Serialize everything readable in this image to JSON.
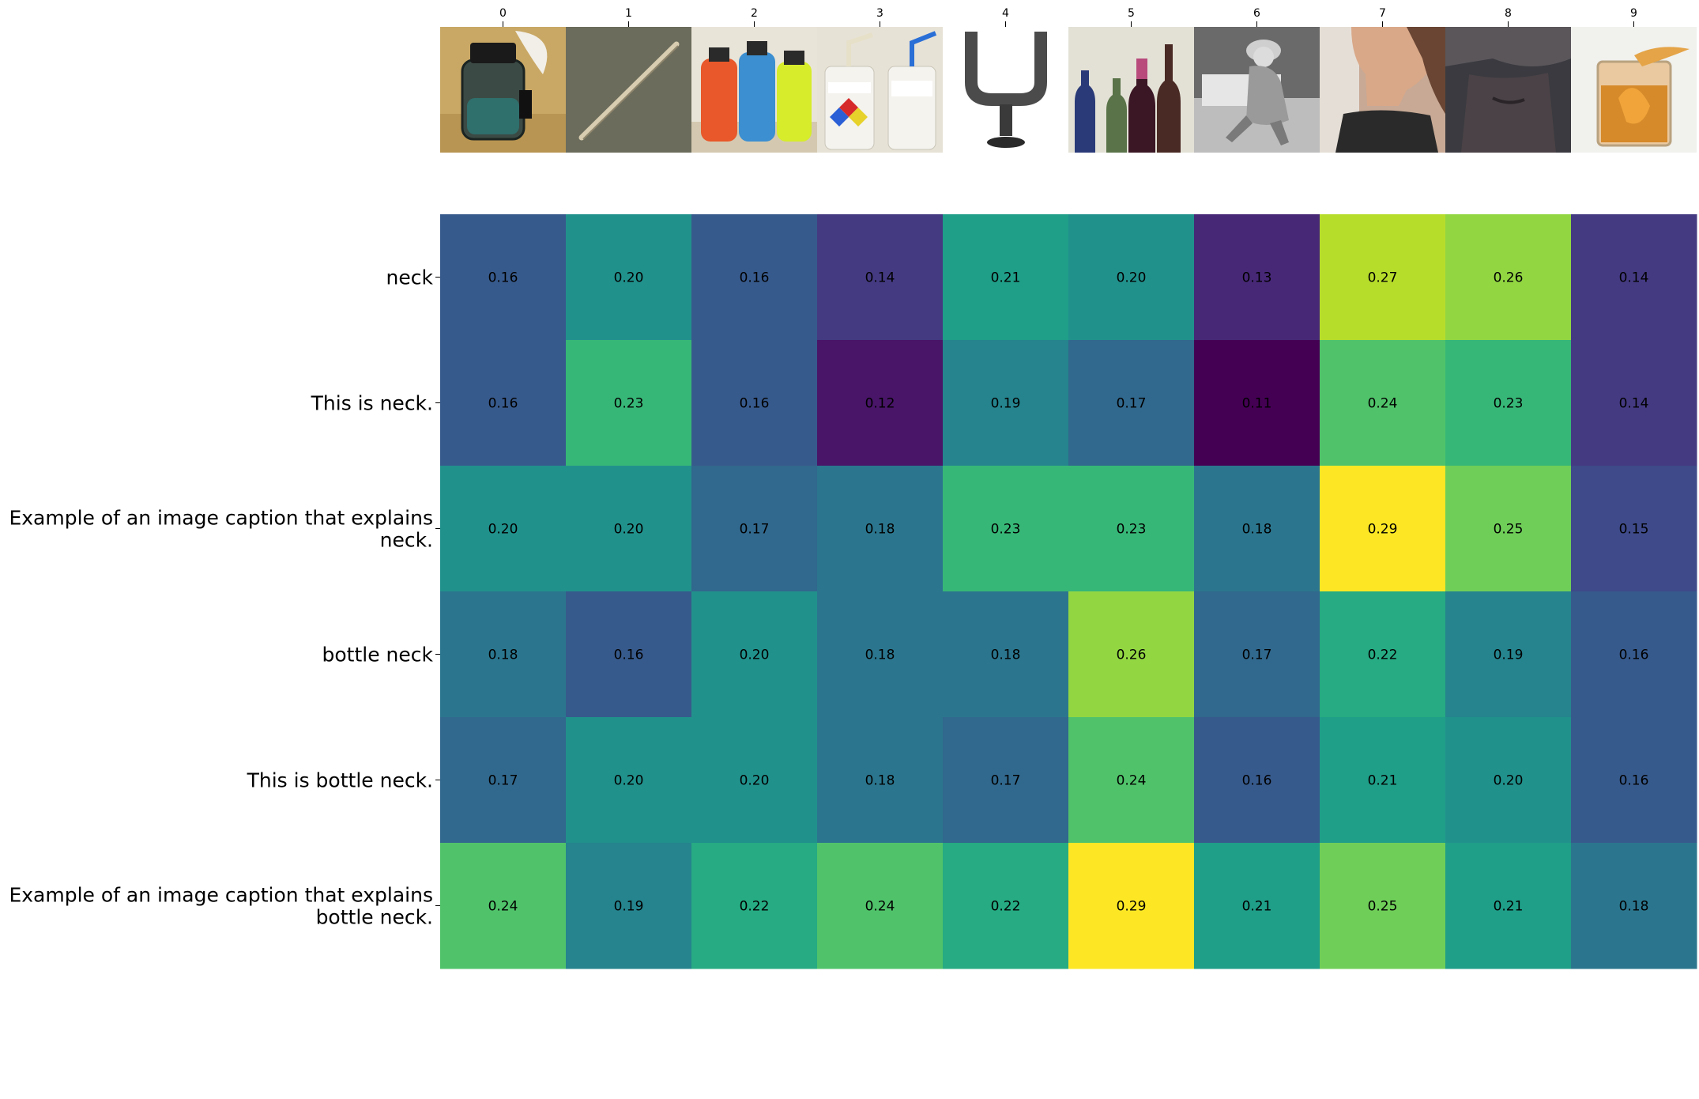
{
  "chart_data": {
    "type": "heatmap",
    "title": "",
    "xlabel": "",
    "ylabel": "",
    "x_tick_labels": [
      "0",
      "1",
      "2",
      "3",
      "4",
      "5",
      "6",
      "7",
      "8",
      "9"
    ],
    "images": [
      {
        "index": "0",
        "description-icon": "ink-bottle-with-quill-icon"
      },
      {
        "index": "1",
        "description-icon": "wooden-stick-icon"
      },
      {
        "index": "2",
        "description-icon": "colorful-water-bottles-icon"
      },
      {
        "index": "3",
        "description-icon": "lab-wash-bottles-icon"
      },
      {
        "index": "4",
        "description-icon": "tuning-fork-icon"
      },
      {
        "index": "5",
        "description-icon": "wine-bottles-icon"
      },
      {
        "index": "6",
        "description-icon": "vintage-woman-photo-icon"
      },
      {
        "index": "7",
        "description-icon": "woman-neck-photo-icon"
      },
      {
        "index": "8",
        "description-icon": "neck-closeup-photo-icon"
      },
      {
        "index": "9",
        "description-icon": "cocktail-glass-icon"
      }
    ],
    "rows": [
      {
        "label_lines": [
          "neck"
        ],
        "values": [
          0.16,
          0.2,
          0.16,
          0.14,
          0.21,
          0.2,
          0.13,
          0.27,
          0.26,
          0.14
        ]
      },
      {
        "label_lines": [
          "This is neck."
        ],
        "values": [
          0.16,
          0.23,
          0.16,
          0.12,
          0.19,
          0.17,
          0.11,
          0.24,
          0.23,
          0.14
        ]
      },
      {
        "label_lines": [
          "Example of an image caption that explains",
          "neck."
        ],
        "values": [
          0.2,
          0.2,
          0.17,
          0.18,
          0.23,
          0.23,
          0.18,
          0.29,
          0.25,
          0.15
        ]
      },
      {
        "label_lines": [
          "bottle neck"
        ],
        "values": [
          0.18,
          0.16,
          0.2,
          0.18,
          0.18,
          0.26,
          0.17,
          0.22,
          0.19,
          0.16
        ]
      },
      {
        "label_lines": [
          "This is bottle neck."
        ],
        "values": [
          0.17,
          0.2,
          0.2,
          0.18,
          0.17,
          0.24,
          0.16,
          0.21,
          0.2,
          0.16
        ]
      },
      {
        "label_lines": [
          "Example of an image caption that explains",
          "bottle neck."
        ],
        "values": [
          0.24,
          0.19,
          0.22,
          0.24,
          0.22,
          0.29,
          0.21,
          0.25,
          0.21,
          0.18
        ]
      }
    ],
    "value_range": [
      0.11,
      0.29
    ],
    "colormap": "viridis",
    "cell_value_format": "2-decimals",
    "colorbar": false,
    "grid": false,
    "colors": {
      "label_text": "#000000",
      "background": "#ffffff"
    }
  }
}
